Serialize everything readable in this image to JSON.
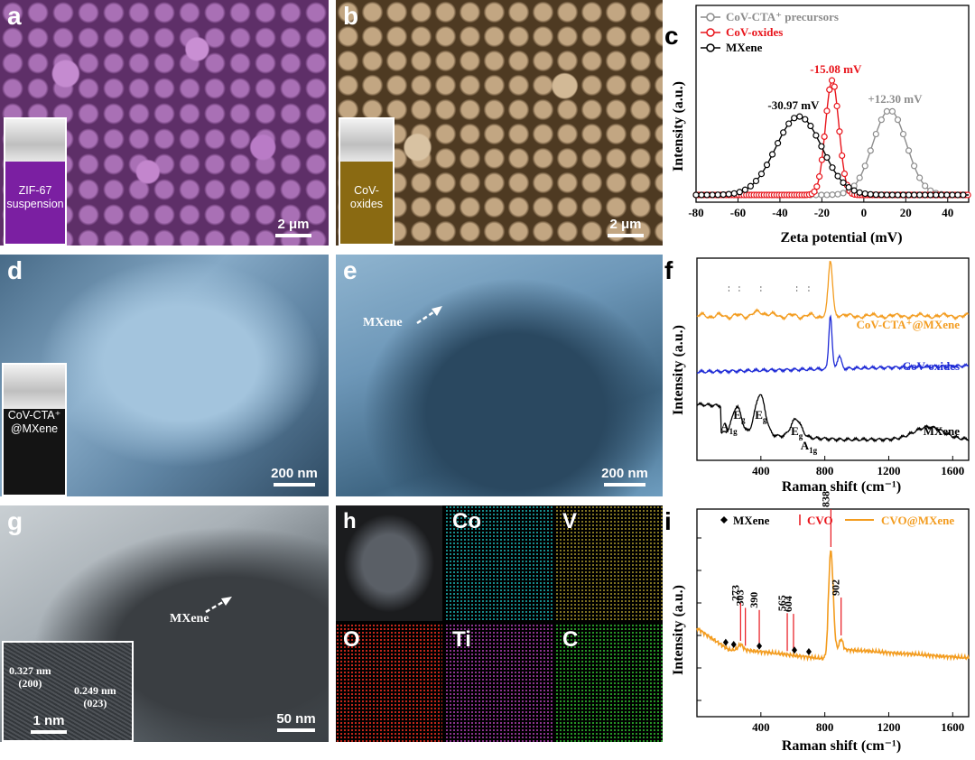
{
  "panels": {
    "a": {
      "label": "a",
      "scale": "2 μm",
      "inset_text_line1": "ZIF-67",
      "inset_text_line2": "suspension"
    },
    "b": {
      "label": "b",
      "scale": "2 μm",
      "inset_text_line1": "CoV-",
      "inset_text_line2": "oxides"
    },
    "c": {
      "label": "c"
    },
    "d": {
      "label": "d",
      "scale": "200 nm",
      "inset_text_line1": "CoV-CTA⁺",
      "inset_text_line2": "@MXene"
    },
    "e": {
      "label": "e",
      "scale": "200 nm",
      "arrow_label": "MXene"
    },
    "f": {
      "label": "f"
    },
    "g": {
      "label": "g",
      "scale": "50 nm",
      "arrow_label": "MXene",
      "inset_scale": "1 nm",
      "d1": "0.327 nm",
      "d1_plane": "(200)",
      "d2": "0.249 nm",
      "d2_plane": "(023)"
    },
    "h": {
      "label": "h",
      "elements": [
        "Co",
        "V",
        "O",
        "Ti",
        "C"
      ]
    },
    "i": {
      "label": "i"
    }
  },
  "colors": {
    "ziflike": "#7b1fa2",
    "cov_oxide": "#8a6a12",
    "dark_liquid": "#141414",
    "grey": "#8c8c8c",
    "red": "#e8141b",
    "black": "#000000",
    "orange": "#f39c1f",
    "blue": "#1f2bd6"
  },
  "chart_data": [
    {
      "panel": "c",
      "type": "line",
      "xlabel": "Zeta potential (mV)",
      "ylabel": "Intensity (a.u.)",
      "xlim": [
        -80,
        50
      ],
      "xticks": [
        -80,
        -60,
        -40,
        -20,
        0,
        20,
        40
      ],
      "legend_position": "top-left",
      "series": [
        {
          "name": "CoV-CTA⁺ precursors",
          "peak": 12.3,
          "width": 8,
          "color": "#8c8c8c",
          "peak_label": "+12.30 mV"
        },
        {
          "name": "CoV-oxides",
          "peak": -15.08,
          "width": 3.2,
          "color": "#e8141b",
          "peak_label": "-15.08 mV"
        },
        {
          "name": "MXene",
          "peak": -30.97,
          "width": 11,
          "color": "#000000",
          "peak_label": "-30.97 mV"
        }
      ]
    },
    {
      "panel": "f",
      "type": "line",
      "xlabel": "Raman shift (cm⁻¹)",
      "ylabel": "Intensity (a.u.)",
      "xlim": [
        0,
        1700
      ],
      "xticks": [
        400,
        800,
        1200,
        1600
      ],
      "series": [
        {
          "name": "CoV-CTA⁺@MXene",
          "color": "#f39c1f"
        },
        {
          "name": "CoV-oxides",
          "color": "#1f2bd6"
        },
        {
          "name": "MXene",
          "color": "#000000"
        }
      ],
      "mode_labels": [
        {
          "text": "A",
          "sub": "1g",
          "x": 200
        },
        {
          "text": "E",
          "sub": "g",
          "x": 265
        },
        {
          "text": "E",
          "sub": "g",
          "x": 400
        },
        {
          "text": "E",
          "sub": "g",
          "x": 625
        },
        {
          "text": "A",
          "sub": "1g",
          "x": 700
        }
      ]
    },
    {
      "panel": "i",
      "type": "line",
      "xlabel": "Raman shift (cm⁻¹)",
      "ylabel": "Intensity (a.u.)",
      "xlim": [
        0,
        1700
      ],
      "xticks": [
        400,
        800,
        1200,
        1600
      ],
      "legend": [
        "MXene",
        "CVO",
        "CVO@MXene"
      ],
      "cvo_peaks": [
        273,
        303,
        390,
        565,
        604,
        838,
        902
      ],
      "mxene_markers": [
        180,
        230,
        390,
        610,
        700
      ],
      "series": [
        {
          "name": "CVO@MXene",
          "color": "#f39c1f"
        }
      ]
    }
  ]
}
